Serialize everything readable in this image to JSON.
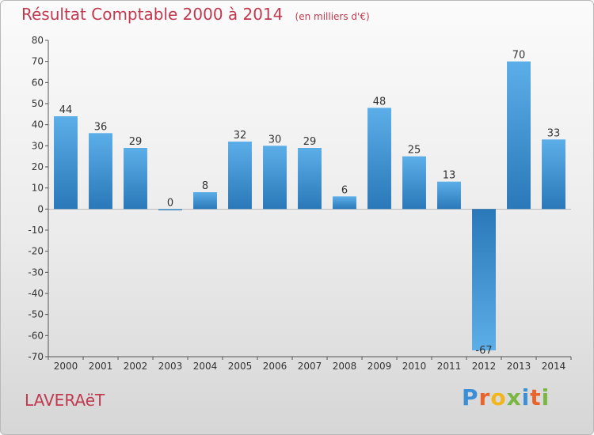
{
  "chart_data": {
    "type": "bar",
    "title": "Résultat Comptable 2000 à 2014",
    "subtitle": "(en milliers d'€)",
    "categories": [
      "2000",
      "2001",
      "2002",
      "2003",
      "2004",
      "2005",
      "2006",
      "2007",
      "2008",
      "2009",
      "2010",
      "2011",
      "2012",
      "2013",
      "2014"
    ],
    "values": [
      44,
      36,
      29,
      0,
      8,
      32,
      30,
      29,
      6,
      48,
      25,
      13,
      -67,
      70,
      33
    ],
    "ylim": [
      -70,
      80
    ],
    "yticks": [
      80,
      70,
      60,
      50,
      40,
      30,
      20,
      10,
      0,
      -10,
      -20,
      -30,
      -40,
      -50,
      -60,
      -70
    ],
    "xlabel": "",
    "ylabel": "",
    "grid": false
  },
  "footer": {
    "place_name": "LAVERAëT",
    "brand": "Proxiti",
    "brand_letters": [
      "P",
      "r",
      "o",
      "x",
      "i",
      "t",
      "i"
    ],
    "brand_colors": [
      "#3a8fd6",
      "#e8642c",
      "#f2b51c",
      "#7ab642",
      "#3a8fd6",
      "#e8642c",
      "#7ab642"
    ]
  },
  "colors": {
    "title": "#c0394e",
    "bar_light": "#5caee8",
    "bar_dark": "#2a78b8",
    "axis": "#555555",
    "tick_text": "#333333"
  }
}
